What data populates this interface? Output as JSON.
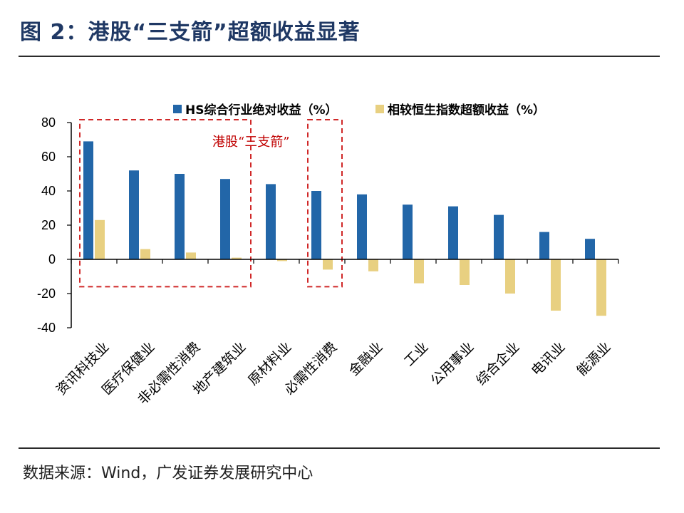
{
  "header": {
    "title": "图 2：港股“三支箭”超额收益显著"
  },
  "footer": {
    "source": "数据来源：Wind，广发证券发展研究中心"
  },
  "colors": {
    "series_abs": "#2266a8",
    "series_excess": "#e8d081",
    "annotation": "#d02828",
    "title": "#1f3864"
  },
  "chart_data": {
    "type": "bar",
    "categories": [
      "资讯科技业",
      "医疗保健业",
      "非必需性消费",
      "地产建筑业",
      "原材料业",
      "必需性消费",
      "金融业",
      "工业",
      "公用事业",
      "综合企业",
      "电讯业",
      "能源业"
    ],
    "series": [
      {
        "name": "HS综合行业绝对收益（%）",
        "values": [
          69,
          52,
          50,
          47,
          44,
          40,
          38,
          32,
          31,
          26,
          16,
          12
        ]
      },
      {
        "name": "相较恒生指数超额收益（%）",
        "values": [
          23,
          6,
          4,
          1,
          -1,
          -6,
          -7,
          -14,
          -15,
          -20,
          -30,
          -33
        ]
      }
    ],
    "ylim": [
      -40,
      80
    ],
    "yticks": [
      "80",
      "60",
      "40",
      "20",
      "0",
      "-20",
      "-40"
    ],
    "ytick_values": [
      80,
      60,
      40,
      20,
      0,
      -20,
      -40
    ],
    "legend_position": "top",
    "grid": false,
    "annotation": {
      "text": "港股“三支箭”",
      "boxes": [
        {
          "from_category": "资讯科技业",
          "to_category": "地产建筑业",
          "y_top": 80,
          "y_bottom": -16
        },
        {
          "from_category": "必需性消费",
          "to_category": "必需性消费",
          "y_top": 80,
          "y_bottom": -16
        }
      ]
    }
  }
}
